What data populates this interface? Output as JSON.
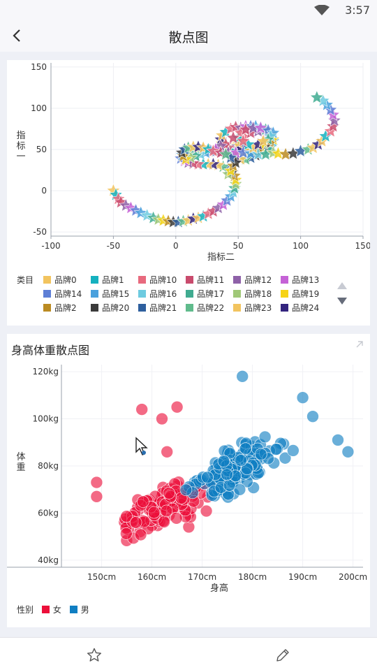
{
  "status": {
    "time": "3:57"
  },
  "header": {
    "title": "散点图"
  },
  "chart_data": [
    {
      "type": "scatter",
      "marker": "star",
      "xlabel": "指标二",
      "ylabel": "指标一",
      "xlim": [
        -100,
        150
      ],
      "ylim": [
        -55,
        155
      ],
      "xticks": [
        -100,
        -50,
        0,
        50,
        100,
        150
      ],
      "yticks": [
        -50,
        0,
        50,
        100,
        150
      ],
      "legend_title": "类目",
      "legend_position": "bottom",
      "series": [
        {
          "name": "品牌0",
          "color": "#f2c45f"
        },
        {
          "name": "品牌1",
          "color": "#15b1bf"
        },
        {
          "name": "品牌10",
          "color": "#e86a7e"
        },
        {
          "name": "品牌11",
          "color": "#c94b6d"
        },
        {
          "name": "品牌12",
          "color": "#8e61a8"
        },
        {
          "name": "品牌13",
          "color": "#c562d6"
        },
        {
          "name": "品牌14",
          "color": "#5e7fd6"
        },
        {
          "name": "品牌15",
          "color": "#4aa1dd"
        },
        {
          "name": "品牌16",
          "color": "#6ecbe0"
        },
        {
          "name": "品牌17",
          "color": "#40ab90"
        },
        {
          "name": "品牌18",
          "color": "#a0c878"
        },
        {
          "name": "品牌19",
          "color": "#f6d316"
        },
        {
          "name": "品牌2",
          "color": "#bb8b22"
        },
        {
          "name": "品牌20",
          "color": "#3b3b3b"
        },
        {
          "name": "品牌21",
          "color": "#2e5f9e"
        },
        {
          "name": "品牌22",
          "color": "#60bb8c"
        },
        {
          "name": "品牌23",
          "color": "#f2c45f"
        },
        {
          "name": "品牌24",
          "color": "#33247e"
        }
      ],
      "points": [
        [
          -50,
          0
        ],
        [
          -48,
          -5
        ],
        [
          -46,
          -10
        ],
        [
          -44,
          -14
        ],
        [
          -40,
          -18
        ],
        [
          -36,
          -21
        ],
        [
          -32,
          -24
        ],
        [
          -28,
          -27
        ],
        [
          -23,
          -30
        ],
        [
          -18,
          -33
        ],
        [
          -14,
          -35
        ],
        [
          -10,
          -36
        ],
        [
          -6,
          -37
        ],
        [
          -2,
          -38
        ],
        [
          2,
          -38
        ],
        [
          6,
          -37
        ],
        [
          10,
          -36
        ],
        [
          14,
          -34
        ],
        [
          18,
          -33
        ],
        [
          22,
          -31
        ],
        [
          26,
          -28
        ],
        [
          30,
          -25
        ],
        [
          34,
          -21
        ],
        [
          38,
          -17
        ],
        [
          41,
          -12
        ],
        [
          44,
          -7
        ],
        [
          46,
          -2
        ],
        [
          47,
          3
        ],
        [
          48,
          8
        ],
        [
          48,
          13
        ],
        [
          47,
          18
        ],
        [
          45,
          22
        ],
        [
          42,
          26
        ],
        [
          38,
          29
        ],
        [
          34,
          31
        ],
        [
          30,
          32
        ],
        [
          26,
          32
        ],
        [
          22,
          32
        ],
        [
          18,
          32
        ],
        [
          14,
          33
        ],
        [
          10,
          34
        ],
        [
          7,
          36
        ],
        [
          4,
          39
        ],
        [
          5,
          43
        ],
        [
          8,
          46
        ],
        [
          12,
          48
        ],
        [
          17,
          49
        ],
        [
          22,
          50
        ],
        [
          27,
          49
        ],
        [
          32,
          48
        ],
        [
          37,
          47
        ],
        [
          41,
          48
        ],
        [
          45,
          50
        ],
        [
          48,
          53
        ],
        [
          50,
          56
        ],
        [
          52,
          60
        ],
        [
          55,
          65
        ],
        [
          60,
          70
        ],
        [
          66,
          72
        ],
        [
          72,
          70
        ],
        [
          76,
          65
        ],
        [
          78,
          60
        ],
        [
          77,
          54
        ],
        [
          74,
          50
        ],
        [
          68,
          47
        ],
        [
          62,
          46
        ],
        [
          56,
          47
        ],
        [
          50,
          48
        ],
        [
          44,
          49
        ],
        [
          40,
          52
        ],
        [
          37,
          57
        ],
        [
          36,
          62
        ],
        [
          37,
          67
        ],
        [
          40,
          71
        ],
        [
          44,
          75
        ],
        [
          48,
          77
        ],
        [
          52,
          76
        ],
        [
          56,
          78
        ],
        [
          60,
          78
        ],
        [
          64,
          78
        ],
        [
          68,
          77
        ],
        [
          72,
          74
        ],
        [
          76,
          68
        ],
        [
          78,
          62
        ],
        [
          76,
          58
        ],
        [
          71,
          53
        ],
        [
          66,
          50
        ],
        [
          60,
          49
        ],
        [
          56,
          48
        ],
        [
          52,
          52
        ],
        [
          50,
          58
        ],
        [
          50,
          64
        ],
        [
          52,
          70
        ],
        [
          56,
          74
        ],
        [
          62,
          76
        ],
        [
          68,
          76
        ],
        [
          74,
          73
        ],
        [
          78,
          70
        ],
        [
          76,
          66
        ],
        [
          74,
          62
        ],
        [
          70,
          58
        ],
        [
          68,
          54
        ],
        [
          66,
          48
        ],
        [
          64,
          43
        ],
        [
          60,
          40
        ],
        [
          56,
          38
        ],
        [
          52,
          38
        ],
        [
          48,
          40
        ],
        [
          46,
          44
        ],
        [
          44,
          48
        ],
        [
          42,
          52
        ],
        [
          40,
          56
        ],
        [
          36,
          54
        ],
        [
          32,
          50
        ],
        [
          28,
          48
        ],
        [
          24,
          46
        ],
        [
          20,
          44
        ],
        [
          16,
          42
        ],
        [
          12,
          40
        ],
        [
          8,
          38
        ],
        [
          6,
          42
        ],
        [
          5,
          46
        ],
        [
          7,
          50
        ],
        [
          10,
          52
        ],
        [
          14,
          53
        ],
        [
          18,
          53
        ],
        [
          22,
          52
        ],
        [
          26,
          50
        ],
        [
          30,
          48
        ],
        [
          36,
          46
        ],
        [
          42,
          46
        ],
        [
          48,
          46
        ],
        [
          54,
          46
        ],
        [
          60,
          45
        ],
        [
          66,
          44
        ],
        [
          72,
          44
        ],
        [
          78,
          46
        ],
        [
          82,
          45
        ],
        [
          88,
          44
        ],
        [
          94,
          45
        ],
        [
          100,
          48
        ],
        [
          106,
          50
        ],
        [
          110,
          52
        ],
        [
          114,
          56
        ],
        [
          117,
          60
        ],
        [
          120,
          66
        ],
        [
          124,
          72
        ],
        [
          126,
          78
        ],
        [
          127,
          85
        ],
        [
          126,
          92
        ],
        [
          124,
          98
        ],
        [
          121,
          104
        ],
        [
          118,
          109
        ],
        [
          113,
          113
        ],
        [
          42,
          20
        ],
        [
          44,
          24
        ],
        [
          46,
          30
        ],
        [
          48,
          34
        ],
        [
          44,
          40
        ],
        [
          40,
          44
        ],
        [
          62,
          52
        ],
        [
          66,
          56
        ],
        [
          70,
          60
        ],
        [
          58,
          56
        ],
        [
          54,
          60
        ],
        [
          46,
          64
        ]
      ]
    },
    {
      "type": "scatter",
      "title": "身高体重散点图",
      "xlabel": "身高",
      "ylabel": "体重",
      "xlim": [
        142,
        202
      ],
      "ylim": [
        37,
        123
      ],
      "xticks": [
        "150cm",
        "160cm",
        "170cm",
        "180cm",
        "190cm",
        "200cm"
      ],
      "yticks": [
        "40kg",
        "60kg",
        "80kg",
        "100kg",
        "120kg"
      ],
      "legend_title": "性别",
      "legend_position": "bottom-left",
      "series": [
        {
          "name": "女",
          "color": "#ec0f3a"
        },
        {
          "name": "男",
          "color": "#0f7ec2"
        }
      ]
    }
  ]
}
